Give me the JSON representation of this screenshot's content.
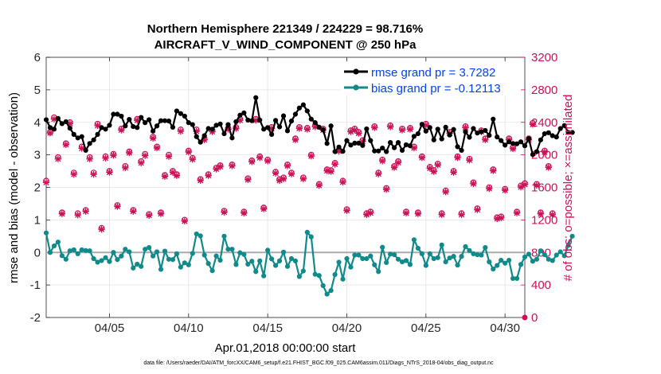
{
  "chart_data": {
    "type": "line",
    "title": "Northern Hemisphere 221349 / 224229 = 98.716%",
    "subtitle": "AIRCRAFT_V_WIND_COMPONENT @ 250 hPa",
    "xlabel": "Apr.01,2018 00:00:00 start",
    "ylabel": "rmse and bias (model - observation)",
    "y2label": "# of obs: o=possible; ×=assimilated",
    "xlim": [
      1.0,
      31.25
    ],
    "ylim": [
      -2,
      6
    ],
    "y2lim": [
      0,
      3200
    ],
    "xticks": [
      5,
      10,
      15,
      20,
      25,
      30
    ],
    "xticklabels": [
      "04/05",
      "04/10",
      "04/15",
      "04/20",
      "04/25",
      "04/30"
    ],
    "yticks": [
      "-2",
      "-1",
      "0",
      "1",
      "2",
      "3",
      "4",
      "5",
      "6"
    ],
    "y2ticks": [
      "0",
      "400",
      "800",
      "1200",
      "1600",
      "2000",
      "2400",
      "2800",
      "3200"
    ],
    "grid": true,
    "legend_position": "top-right",
    "colors": {
      "rmse": "#000000",
      "bias": "#108a8a",
      "obs": "#cc1155",
      "zero": "#aaaaaa",
      "legend_text": "#0044ee"
    },
    "series": [
      {
        "name": "rmse grand pr = 3.7282",
        "values": [
          4.08,
          3.84,
          3.79,
          4.12,
          3.96,
          4.02,
          3.82,
          3.63,
          3.52,
          3.56,
          3.14,
          3.35,
          3.46,
          3.63,
          3.84,
          3.79,
          3.91,
          4.25,
          4.25,
          4.19,
          3.89,
          4.09,
          3.87,
          3.84,
          4.15,
          3.99,
          4.08,
          3.73,
          3.89,
          4.05,
          4.05,
          4.04,
          3.85,
          4.35,
          4.27,
          4.19,
          3.99,
          3.93,
          3.56,
          3.39,
          3.59,
          3.81,
          3.79,
          3.91,
          3.95,
          3.65,
          3.93,
          3.52,
          4.02,
          4.22,
          4.29,
          4.07,
          4.05,
          4.76,
          4.07,
          3.79,
          3.84,
          3.63,
          4.06,
          3.86,
          4.2,
          3.74,
          4.04,
          4.25,
          4.44,
          4.54,
          4.35,
          4.1,
          3.99,
          3.85,
          3.77,
          3.35,
          3.89,
          3.1,
          3.24,
          3.11,
          3.44,
          3.3,
          3.36,
          3.36,
          3.29,
          3.8,
          3.44,
          3.12,
          3.12,
          3.21,
          3.1,
          3.38,
          3.22,
          3.38,
          3.14,
          3.31,
          3.28,
          3.57,
          3.65,
          3.94,
          3.73,
          3.84,
          3.46,
          3.79,
          3.49,
          3.85,
          3.61,
          3.78,
          3.25,
          3.14,
          3.71,
          3.54,
          3.81,
          3.67,
          3.71,
          3.75,
          3.6,
          4.1,
          3.55,
          3.44,
          3.3,
          3.4,
          3.35,
          3.34,
          3.4,
          3.28,
          3.5,
          3.01,
          3.1,
          3.46,
          3.65,
          3.68,
          3.59,
          3.55,
          3.81,
          3.9,
          3.69,
          3.69
        ]
      },
      {
        "name": "bias grand pr = -0.12113",
        "values": [
          0.6,
          0.0,
          0.2,
          0.32,
          -0.1,
          -0.21,
          0.05,
          0.08,
          -0.04,
          0.08,
          0.06,
          0.05,
          -0.19,
          -0.3,
          -0.25,
          -0.16,
          -0.28,
          0.0,
          -0.22,
          -0.11,
          0.1,
          0.02,
          -0.48,
          -0.36,
          -0.43,
          0.1,
          0.15,
          -0.11,
          0.02,
          -0.52,
          0.04,
          -0.21,
          -0.22,
          -0.04,
          -0.45,
          -0.32,
          -0.38,
          -0.03,
          0.57,
          0.51,
          -0.08,
          -0.34,
          -0.56,
          -0.11,
          -0.24,
          0.5,
          0.1,
          0.1,
          -0.37,
          -0.01,
          -0.06,
          -0.36,
          -0.27,
          -0.59,
          -0.26,
          -0.72,
          0.07,
          -0.2,
          -0.4,
          -0.26,
          0.01,
          -0.43,
          -0.19,
          -0.26,
          -0.74,
          -0.57,
          0.62,
          0.48,
          -0.67,
          -0.71,
          -1.02,
          -1.28,
          -1.17,
          -0.68,
          -0.3,
          -0.82,
          -0.19,
          -0.45,
          -0.08,
          -0.08,
          -0.19,
          -0.19,
          -0.11,
          -0.38,
          -0.59,
          0.16,
          -0.31,
          -0.05,
          -0.07,
          -0.21,
          -0.29,
          -0.25,
          -0.37,
          0.39,
          0.13,
          -0.04,
          -0.4,
          -0.04,
          -0.19,
          -0.16,
          0.23,
          -0.29,
          -0.17,
          -0.12,
          -0.39,
          -0.12,
          0.18,
          0.06,
          -0.04,
          -0.07,
          -0.08,
          0.15,
          -0.29,
          -0.51,
          -0.4,
          -0.24,
          -0.33,
          -0.24,
          -0.8,
          -0.8,
          -0.37,
          -0.14,
          -0.05,
          -0.27,
          -0.21,
          0.05,
          -0.07,
          -0.21,
          -0.25,
          -0.08,
          0.02,
          -0.1,
          0.22,
          0.5
        ]
      }
    ],
    "obs_possible": [
      1680,
      2280,
      2460,
      1970,
      1290,
      2140,
      2400,
      1780,
      1280,
      2100,
      1320,
      1970,
      1780,
      2380,
      1100,
      1980,
      1800,
      2010,
      1380,
      2320,
      1860,
      2040,
      1320,
      2440,
      1920,
      2010,
      1270,
      2220,
      2100,
      1290,
      1750,
      2000,
      1800,
      1760,
      2310,
      1200,
      2050,
      1960,
      2310,
      1700,
      2200,
      1760,
      2300,
      1840,
      1870,
      1310,
      2330,
      1880,
      2340,
      2440,
      1300,
      1710,
      1930,
      2440,
      1980,
      1350,
      1940,
      2340,
      1790,
      1700,
      1720,
      1880,
      1780,
      2200,
      2340,
      1720,
      2330,
      2000,
      2360,
      1640,
      2320,
      1820,
      1810,
      1900,
      2060,
      1680,
      1330,
      2300,
      2320,
      2280,
      2180,
      1280,
      1300,
      2350,
      1780,
      1940,
      1590,
      2360,
      1860,
      1920,
      2320,
      1300,
      2330,
      2100,
      1290,
      1980,
      2380,
      1850,
      1810,
      1890,
      1280,
      1560,
      2280,
      1800,
      1980,
      1280,
      2350,
      1950,
      1660,
      1340,
      2300,
      2200,
      1600,
      1820,
      1230,
      1240,
      1580,
      2200,
      2090,
      1300,
      1620,
      1650,
      2200,
      2390,
      1640,
      1290,
      2050,
      1860,
      1280
    ],
    "obs_assimilated": [
      1660,
      2270,
      2440,
      1950,
      1275,
      2125,
      2385,
      1760,
      1260,
      2080,
      1305,
      1950,
      1760,
      2360,
      1085,
      1960,
      1785,
      1995,
      1365,
      2305,
      1840,
      2025,
      1305,
      2425,
      1900,
      1990,
      1255,
      2205,
      2085,
      1275,
      1735,
      1980,
      1785,
      1745,
      2290,
      1185,
      2035,
      1945,
      2290,
      1685,
      2185,
      1745,
      2285,
      1825,
      1855,
      1295,
      2315,
      1865,
      2325,
      2425,
      1285,
      1695,
      1915,
      2425,
      1965,
      1335,
      1925,
      2325,
      1775,
      1685,
      1705,
      1865,
      1765,
      2185,
      2325,
      1705,
      2315,
      1985,
      2345,
      1625,
      2305,
      1805,
      1795,
      1885,
      2045,
      1665,
      1315,
      2285,
      2305,
      2265,
      2165,
      1265,
      1285,
      2335,
      1765,
      1925,
      1575,
      2345,
      1845,
      1905,
      2305,
      1285,
      2315,
      2085,
      1275,
      1965,
      2365,
      1835,
      1795,
      1875,
      1265,
      1545,
      2265,
      1785,
      1965,
      1265,
      2335,
      1935,
      1645,
      1325,
      2285,
      2185,
      1585,
      1805,
      1215,
      1225,
      1565,
      2185,
      2075,
      1285,
      1605,
      1635,
      2185,
      2375,
      1625,
      1275,
      2035,
      1845,
      1265
    ]
  },
  "footer": "data file: /Users/raeder/DAI/ATM_forcXX/CAM6_setup/f.e21.FHIST_BGC.f09_025.CAM6assim.011/Diags_NTrS_2018-04/obs_diag_output.nc"
}
